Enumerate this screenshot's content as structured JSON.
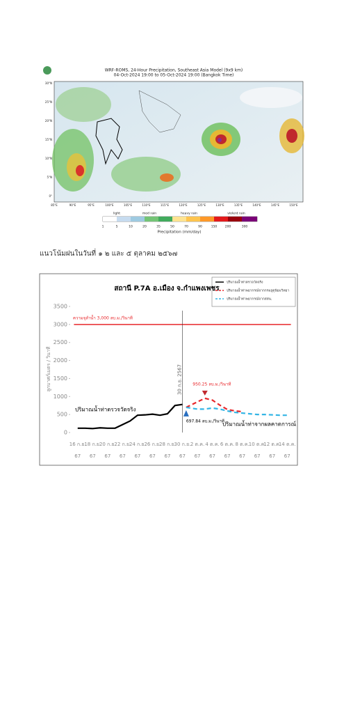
{
  "map": {
    "title": "WRF-ROMS, 24-Hour Precipitation, Southeast Asia Model (9x9 km)",
    "subtitle": "04-Oct-2024 19:00 to 05-Oct-2024 19:00 (Bangkok Time)",
    "lat_labels": [
      "30°N",
      "25°N",
      "20°N",
      "15°N",
      "10°N",
      "5°N",
      "0°"
    ],
    "lon_labels": [
      "85°E",
      "90°E",
      "95°E",
      "100°E",
      "105°E",
      "110°E",
      "115°E",
      "120°E",
      "125°E",
      "130°E",
      "135°E",
      "140°E",
      "145°E",
      "150°E"
    ],
    "rain_classes": [
      "light",
      "mod rain",
      "heavy rain",
      "violent rain"
    ],
    "colorbar_labels": [
      1,
      5,
      10,
      20,
      35,
      50,
      70,
      90,
      150,
      200,
      300
    ],
    "colorbar_title": "Precipitation (mm/day)"
  },
  "caption": "แนวโน้มฝนในวันที่ ๑ ๒ และ ๕ ตุลาคม ๒๕๖๗",
  "chart_data": {
    "type": "line",
    "title": "สถานี P.7A อ.เมือง จ.กำแพงเพชร",
    "y_label": "ลูกบาศก์เมตร / วินาที",
    "xlim": [
      -1,
      29
    ],
    "ylim": [
      0,
      3500
    ],
    "yticks": [
      0,
      500,
      1000,
      1500,
      2000,
      2500,
      3000,
      3500
    ],
    "xticks": [
      {
        "value": 0,
        "label": "16 ก.ย. 67"
      },
      {
        "value": 2,
        "label": "18 ก.ย. 67"
      },
      {
        "value": 4,
        "label": "20 ก.ย. 67"
      },
      {
        "value": 6,
        "label": "22 ก.ย. 67"
      },
      {
        "value": 8,
        "label": "24 ก.ย. 67"
      },
      {
        "value": 10,
        "label": "26 ก.ย. 67"
      },
      {
        "value": 12,
        "label": "28 ก.ย. 67"
      },
      {
        "value": 14,
        "label": "30 ก.ย. 67"
      },
      {
        "value": 16,
        "label": "2 ต.ค. 67"
      },
      {
        "value": 18,
        "label": "4 ต.ค. 67"
      },
      {
        "value": 20,
        "label": "6 ต.ค. 67"
      },
      {
        "value": 22,
        "label": "8 ต.ค. 67"
      },
      {
        "value": 24,
        "label": "10 ต.ค. 67"
      },
      {
        "value": 26,
        "label": "12 ต.ค. 67"
      },
      {
        "value": 28,
        "label": "14 ต.ค. 67"
      }
    ],
    "grid": false,
    "legend": "top-right",
    "threshold": {
      "value": 3000,
      "label": "ความจุลำน้ำ 3,000 ลบ.ม./วินาที",
      "color": "#e8262a",
      "x": [
        -0.5,
        28.5
      ]
    },
    "series": [
      {
        "name": "ปริมาณน้ำท่าตรวจวัดจริง",
        "color": "#000000",
        "dash": false,
        "x": [
          0,
          1,
          2,
          3,
          4,
          5,
          6,
          7,
          8,
          9,
          10,
          11,
          12,
          13,
          14
        ],
        "values": [
          120,
          120,
          110,
          130,
          120,
          120,
          220,
          320,
          480,
          490,
          510,
          480,
          520,
          750,
          780
        ]
      },
      {
        "name": "ปริมาณน้ำท่าพยากรณ์จากกรมอุตุนิยมวิทยา",
        "color": "#e8262a",
        "dash": true,
        "x": [
          14.5,
          16,
          17,
          18,
          19,
          20,
          21,
          22
        ],
        "values": [
          697.84,
          850,
          950.25,
          900,
          760,
          640,
          600,
          580
        ]
      },
      {
        "name": "ปริมาณน้ำท่าพยากรณ์จากสสน.",
        "color": "#33b5e5",
        "dash": true,
        "x": [
          14.5,
          16,
          17,
          18,
          19,
          20,
          21,
          22,
          23,
          24,
          25,
          26,
          27,
          28
        ],
        "values": [
          697.84,
          650,
          650,
          680,
          650,
          600,
          560,
          540,
          520,
          500,
          500,
          490,
          480,
          480
        ]
      }
    ],
    "date_marker": {
      "x": 14,
      "label": "30 ก.ย. 2567"
    },
    "peak_label": "950.25 ลบ.ม./วินาที",
    "start_label": "697.84 ลบ.ม./วินาที",
    "observed_label": "ปริมาณน้ำท่าตรวจวัดจริง",
    "forecast_label": "ปริมาณน้ำท่าจากผลคาดการณ์"
  }
}
